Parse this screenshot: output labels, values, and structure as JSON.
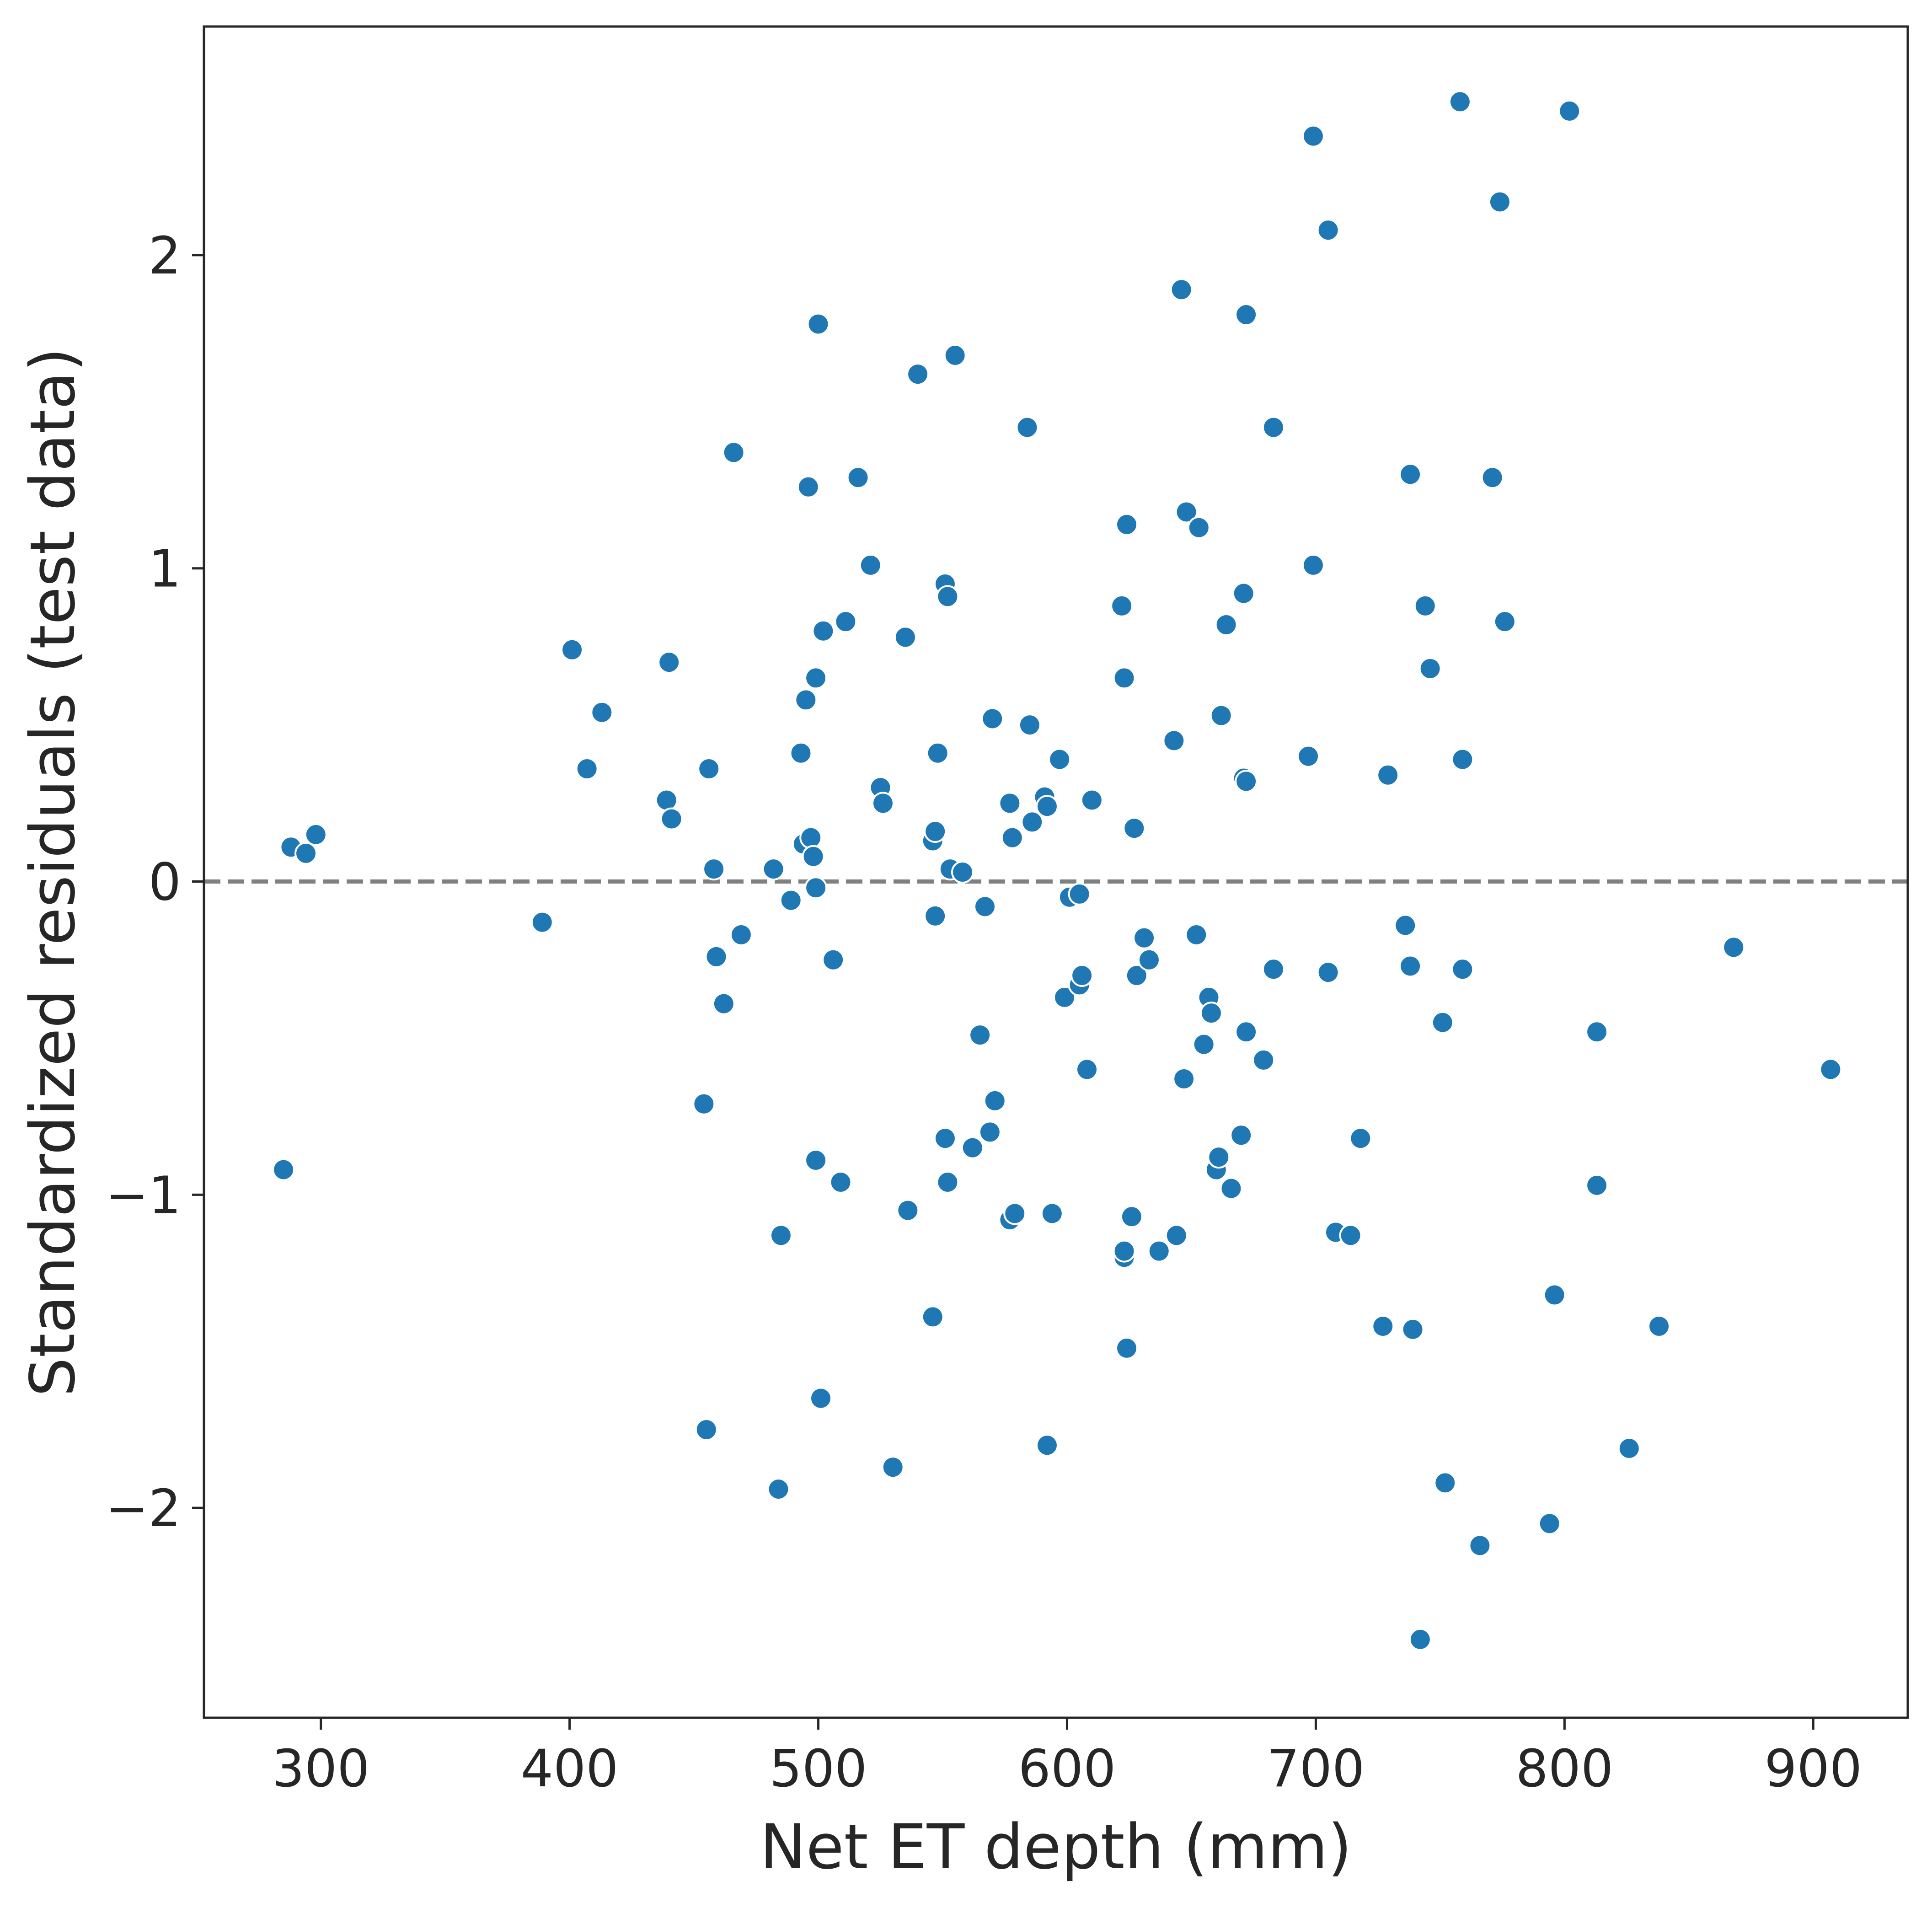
{
  "chart_data": {
    "type": "scatter",
    "title": "",
    "xlabel": "Net ET depth (mm)",
    "ylabel": "Standardized residuals (test data)",
    "xlim": [
      253,
      938
    ],
    "ylim": [
      -2.67,
      2.73
    ],
    "x_ticks": [
      300,
      400,
      500,
      600,
      700,
      800,
      900
    ],
    "x_tick_labels": [
      "300",
      "400",
      "500",
      "600",
      "700",
      "800",
      "900"
    ],
    "y_ticks": [
      -2,
      -1,
      0,
      1,
      2
    ],
    "y_tick_labels": [
      "−2",
      "−1",
      "0",
      "1",
      "2"
    ],
    "grid": false,
    "legend": "none",
    "reference_line": {
      "y": 0,
      "style": "dashed",
      "color": "#808080"
    },
    "marker_color": "#1f77b4",
    "points": [
      {
        "x": 285,
        "y": -0.92
      },
      {
        "x": 288,
        "y": 0.11
      },
      {
        "x": 294,
        "y": 0.09
      },
      {
        "x": 298,
        "y": 0.15
      },
      {
        "x": 389,
        "y": -0.13
      },
      {
        "x": 401,
        "y": 0.74
      },
      {
        "x": 407,
        "y": 0.36
      },
      {
        "x": 413,
        "y": 0.54
      },
      {
        "x": 439,
        "y": 0.26
      },
      {
        "x": 440,
        "y": 0.7
      },
      {
        "x": 441,
        "y": 0.2
      },
      {
        "x": 454,
        "y": -0.71
      },
      {
        "x": 455,
        "y": -1.75
      },
      {
        "x": 456,
        "y": 0.36
      },
      {
        "x": 458,
        "y": 0.04
      },
      {
        "x": 459,
        "y": -0.24
      },
      {
        "x": 462,
        "y": -0.39
      },
      {
        "x": 466,
        "y": 1.37
      },
      {
        "x": 469,
        "y": -0.17
      },
      {
        "x": 482,
        "y": 0.04
      },
      {
        "x": 484,
        "y": -1.94
      },
      {
        "x": 485,
        "y": -1.13
      },
      {
        "x": 489,
        "y": -0.06
      },
      {
        "x": 493,
        "y": 0.41
      },
      {
        "x": 494,
        "y": 0.12
      },
      {
        "x": 495,
        "y": 0.58
      },
      {
        "x": 496,
        "y": 1.26
      },
      {
        "x": 497,
        "y": 0.14
      },
      {
        "x": 498,
        "y": 0.08
      },
      {
        "x": 499,
        "y": -0.02
      },
      {
        "x": 499,
        "y": 0.65
      },
      {
        "x": 499,
        "y": -0.89
      },
      {
        "x": 500,
        "y": 1.78
      },
      {
        "x": 501,
        "y": -1.65
      },
      {
        "x": 502,
        "y": 0.8
      },
      {
        "x": 506,
        "y": -0.25
      },
      {
        "x": 509,
        "y": -0.96
      },
      {
        "x": 511,
        "y": 0.83
      },
      {
        "x": 516,
        "y": 1.29
      },
      {
        "x": 521,
        "y": 1.01
      },
      {
        "x": 525,
        "y": 0.3
      },
      {
        "x": 526,
        "y": 0.25
      },
      {
        "x": 530,
        "y": -1.87
      },
      {
        "x": 535,
        "y": 0.78
      },
      {
        "x": 536,
        "y": -1.05
      },
      {
        "x": 540,
        "y": 1.62
      },
      {
        "x": 546,
        "y": 0.13
      },
      {
        "x": 546,
        "y": -1.39
      },
      {
        "x": 547,
        "y": 0.16
      },
      {
        "x": 547,
        "y": -0.11
      },
      {
        "x": 548,
        "y": 0.41
      },
      {
        "x": 551,
        "y": 0.95
      },
      {
        "x": 551,
        "y": -0.82
      },
      {
        "x": 552,
        "y": 0.91
      },
      {
        "x": 552,
        "y": -0.96
      },
      {
        "x": 553,
        "y": 0.04
      },
      {
        "x": 555,
        "y": 1.68
      },
      {
        "x": 558,
        "y": 0.03
      },
      {
        "x": 562,
        "y": -0.85
      },
      {
        "x": 565,
        "y": -0.49
      },
      {
        "x": 567,
        "y": -0.08
      },
      {
        "x": 569,
        "y": -0.8
      },
      {
        "x": 570,
        "y": 0.52
      },
      {
        "x": 571,
        "y": -0.7
      },
      {
        "x": 577,
        "y": 0.25
      },
      {
        "x": 577,
        "y": -1.08
      },
      {
        "x": 578,
        "y": 0.14
      },
      {
        "x": 579,
        "y": -1.06
      },
      {
        "x": 584,
        "y": 1.45
      },
      {
        "x": 585,
        "y": 0.5
      },
      {
        "x": 586,
        "y": 0.19
      },
      {
        "x": 591,
        "y": 0.27
      },
      {
        "x": 592,
        "y": 0.24
      },
      {
        "x": 592,
        "y": -1.8
      },
      {
        "x": 594,
        "y": -1.06
      },
      {
        "x": 597,
        "y": 0.39
      },
      {
        "x": 599,
        "y": -0.37
      },
      {
        "x": 601,
        "y": -0.05
      },
      {
        "x": 605,
        "y": -0.33
      },
      {
        "x": 605,
        "y": -0.04
      },
      {
        "x": 606,
        "y": -0.3
      },
      {
        "x": 608,
        "y": -0.6
      },
      {
        "x": 610,
        "y": 0.26
      },
      {
        "x": 622,
        "y": 0.88
      },
      {
        "x": 623,
        "y": 0.65
      },
      {
        "x": 623,
        "y": -1.2
      },
      {
        "x": 623,
        "y": -1.18
      },
      {
        "x": 624,
        "y": 1.14
      },
      {
        "x": 624,
        "y": -1.49
      },
      {
        "x": 626,
        "y": -1.07
      },
      {
        "x": 627,
        "y": 0.17
      },
      {
        "x": 628,
        "y": -0.3
      },
      {
        "x": 631,
        "y": -0.18
      },
      {
        "x": 633,
        "y": -0.25
      },
      {
        "x": 637,
        "y": -1.18
      },
      {
        "x": 643,
        "y": 0.45
      },
      {
        "x": 644,
        "y": -1.13
      },
      {
        "x": 646,
        "y": 1.89
      },
      {
        "x": 647,
        "y": -0.63
      },
      {
        "x": 648,
        "y": 1.18
      },
      {
        "x": 652,
        "y": -0.17
      },
      {
        "x": 653,
        "y": 1.13
      },
      {
        "x": 655,
        "y": -0.52
      },
      {
        "x": 657,
        "y": -0.37
      },
      {
        "x": 658,
        "y": -0.42
      },
      {
        "x": 660,
        "y": -0.92
      },
      {
        "x": 661,
        "y": -0.88
      },
      {
        "x": 662,
        "y": 0.53
      },
      {
        "x": 664,
        "y": 0.82
      },
      {
        "x": 666,
        "y": -0.98
      },
      {
        "x": 670,
        "y": -0.81
      },
      {
        "x": 671,
        "y": 0.33
      },
      {
        "x": 671,
        "y": 0.92
      },
      {
        "x": 672,
        "y": 1.81
      },
      {
        "x": 672,
        "y": 0.32
      },
      {
        "x": 672,
        "y": -0.48
      },
      {
        "x": 679,
        "y": -0.57
      },
      {
        "x": 683,
        "y": 1.45
      },
      {
        "x": 683,
        "y": -0.28
      },
      {
        "x": 697,
        "y": 0.4
      },
      {
        "x": 699,
        "y": 2.38
      },
      {
        "x": 699,
        "y": 1.01
      },
      {
        "x": 705,
        "y": 2.08
      },
      {
        "x": 705,
        "y": -0.29
      },
      {
        "x": 708,
        "y": -1.12
      },
      {
        "x": 714,
        "y": -1.13
      },
      {
        "x": 718,
        "y": -0.82
      },
      {
        "x": 727,
        "y": -1.42
      },
      {
        "x": 729,
        "y": 0.34
      },
      {
        "x": 736,
        "y": -0.14
      },
      {
        "x": 738,
        "y": 1.3
      },
      {
        "x": 738,
        "y": -0.27
      },
      {
        "x": 739,
        "y": -1.43
      },
      {
        "x": 742,
        "y": -2.42
      },
      {
        "x": 744,
        "y": 0.88
      },
      {
        "x": 746,
        "y": 0.68
      },
      {
        "x": 751,
        "y": -0.45
      },
      {
        "x": 752,
        "y": -1.92
      },
      {
        "x": 758,
        "y": 2.49
      },
      {
        "x": 759,
        "y": 0.39
      },
      {
        "x": 759,
        "y": -0.28
      },
      {
        "x": 766,
        "y": -2.12
      },
      {
        "x": 771,
        "y": 1.29
      },
      {
        "x": 774,
        "y": 2.17
      },
      {
        "x": 776,
        "y": 0.83
      },
      {
        "x": 794,
        "y": -2.05
      },
      {
        "x": 796,
        "y": -1.32
      },
      {
        "x": 802,
        "y": 2.46
      },
      {
        "x": 813,
        "y": -0.48
      },
      {
        "x": 813,
        "y": -0.97
      },
      {
        "x": 826,
        "y": -1.81
      },
      {
        "x": 838,
        "y": -1.42
      },
      {
        "x": 868,
        "y": -0.21
      },
      {
        "x": 907,
        "y": -0.6
      }
    ]
  }
}
